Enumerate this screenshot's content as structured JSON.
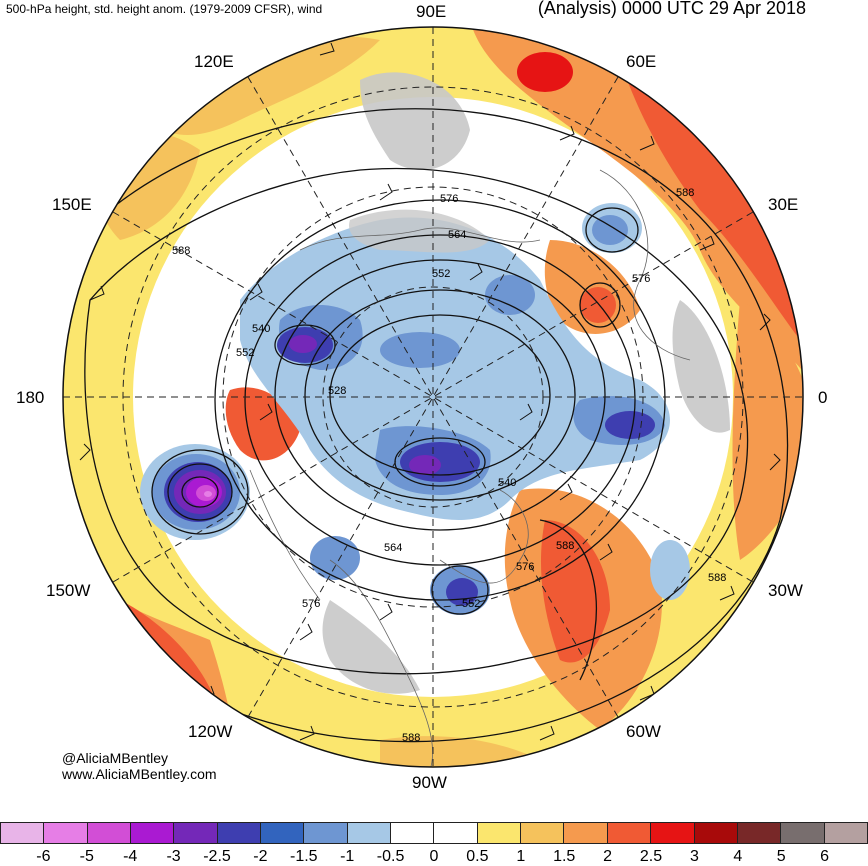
{
  "header": {
    "left": "500-hPa height, std. height anom. (1979-2009 CFSR), wind",
    "right": "(Analysis) 0000 UTC 29 Apr 2018"
  },
  "longitude_labels": {
    "top": "90E",
    "upper_left": "120E",
    "upper_right": "60E",
    "left_upper": "150E",
    "right_upper": "30E",
    "left": "180",
    "right": "0",
    "left_lower": "150W",
    "right_lower": "30W",
    "lower_left": "120W",
    "lower_right": "60W",
    "bottom": "90W"
  },
  "credits": {
    "handle": "@AliciaMBentley",
    "site": "www.AliciaMBentley.com"
  },
  "contour_labels": [
    "576",
    "564",
    "552",
    "540",
    "552",
    "528",
    "588",
    "588",
    "576",
    "540",
    "564",
    "576",
    "588",
    "588",
    "576",
    "552",
    "588"
  ],
  "colorbar": {
    "colors": [
      "#e8b4e8",
      "#e67ee6",
      "#d24ed6",
      "#aa1ad2",
      "#7428b8",
      "#3e3eb0",
      "#3264be",
      "#6e96d2",
      "#a6c8e6",
      "#ffffff",
      "#ffffff",
      "#fbe66e",
      "#f5c25c",
      "#f59a4e",
      "#f05a34",
      "#e61414",
      "#a80a0a",
      "#782828",
      "#786e6e",
      "#b4a0a0"
    ],
    "ticks": [
      "-6",
      "-5",
      "-4",
      "-3",
      "-2.5",
      "-2",
      "-1.5",
      "-1",
      "-0.5",
      "0",
      "0.5",
      "1",
      "1.5",
      "2",
      "2.5",
      "3",
      "4",
      "5",
      "6"
    ]
  },
  "colors": {
    "warm_light": "#fbe66e",
    "warm_mid": "#f5c25c",
    "warm_orange": "#f59a4e",
    "warm_red": "#f05a34",
    "warm_dark": "#e61414",
    "cool_light": "#a6c8e6",
    "cool_mid": "#6e96d2",
    "cool_dark": "#3e3eb0",
    "purple": "#7428b8",
    "magenta": "#d24ed6",
    "land_gray": "#c8c8c8"
  }
}
